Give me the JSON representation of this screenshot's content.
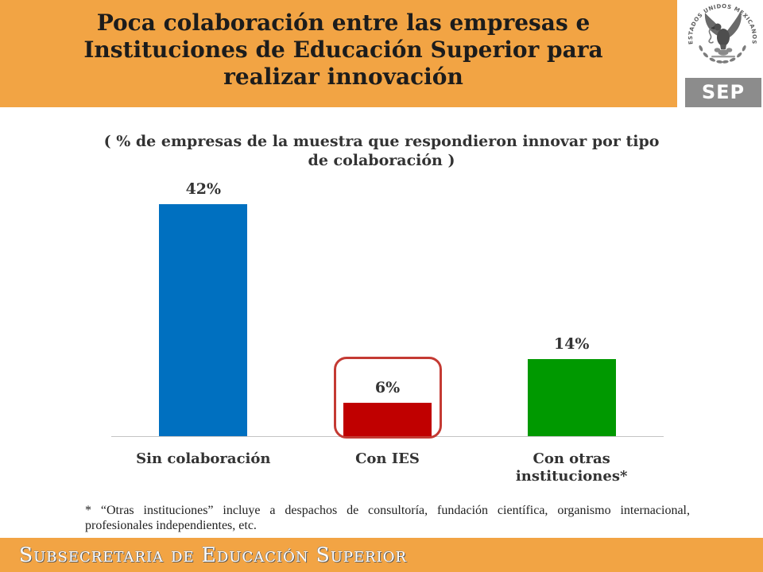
{
  "colors": {
    "accent": "#F2A444",
    "logo_box": "#8C8C8C",
    "title_text": "#1C1C1C"
  },
  "header": {
    "title_lines": [
      "Poca colaboración entre las empresas e",
      "Instituciones de Educación Superior para",
      "realizar innovación"
    ],
    "logo": {
      "seal_text": "ESTADOS UNIDOS MEXICANOS",
      "label": "SEP"
    }
  },
  "chart_data": {
    "type": "bar",
    "title_lines": [
      "( % de empresas de la muestra que respondieron innovar por tipo",
      "de colaboración )"
    ],
    "categories": [
      "Sin colaboración",
      "Con IES",
      "Con otras instituciones*"
    ],
    "values": [
      42,
      6,
      14
    ],
    "value_labels": [
      "42%",
      "6%",
      "14%"
    ],
    "colors": [
      "#0070C0",
      "#C00000",
      "#009900"
    ],
    "highlighted_index": 1,
    "highlight_color": "#C43A33",
    "ylim": [
      0,
      50
    ],
    "grid": false
  },
  "footnote": {
    "lines": [
      "* “Otras instituciones” incluye a despachos de consultoría, fundación científica, organismo internacional,",
      "profesionales independientes, etc."
    ]
  },
  "footer": {
    "text": "Subsecretaria de Educación Superior"
  }
}
